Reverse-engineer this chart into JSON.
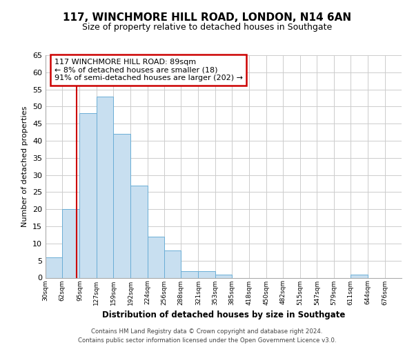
{
  "title": "117, WINCHMORE HILL ROAD, LONDON, N14 6AN",
  "subtitle": "Size of property relative to detached houses in Southgate",
  "xlabel": "Distribution of detached houses by size in Southgate",
  "ylabel": "Number of detached properties",
  "bin_labels": [
    "30sqm",
    "62sqm",
    "95sqm",
    "127sqm",
    "159sqm",
    "192sqm",
    "224sqm",
    "256sqm",
    "288sqm",
    "321sqm",
    "353sqm",
    "385sqm",
    "418sqm",
    "450sqm",
    "482sqm",
    "515sqm",
    "547sqm",
    "579sqm",
    "611sqm",
    "644sqm",
    "676sqm"
  ],
  "bar_values": [
    6,
    20,
    48,
    53,
    42,
    27,
    12,
    8,
    2,
    2,
    1,
    0,
    0,
    0,
    0,
    0,
    0,
    0,
    1,
    0,
    0
  ],
  "bar_color": "#c8dff0",
  "bar_edge_color": "#6aadd5",
  "property_line_x": 89,
  "bin_edges": [
    30,
    62,
    95,
    127,
    159,
    192,
    224,
    256,
    288,
    321,
    353,
    385,
    418,
    450,
    482,
    515,
    547,
    579,
    611,
    644,
    676,
    708
  ],
  "annotation_line1": "117 WINCHMORE HILL ROAD: 89sqm",
  "annotation_line2": "← 8% of detached houses are smaller (18)",
  "annotation_line3": "91% of semi-detached houses are larger (202) →",
  "annotation_box_color": "#ffffff",
  "annotation_box_edge_color": "#cc0000",
  "property_line_color": "#cc0000",
  "ylim": [
    0,
    65
  ],
  "yticks": [
    0,
    5,
    10,
    15,
    20,
    25,
    30,
    35,
    40,
    45,
    50,
    55,
    60,
    65
  ],
  "footer_line1": "Contains HM Land Registry data © Crown copyright and database right 2024.",
  "footer_line2": "Contains public sector information licensed under the Open Government Licence v3.0.",
  "background_color": "#ffffff",
  "grid_color": "#cccccc"
}
